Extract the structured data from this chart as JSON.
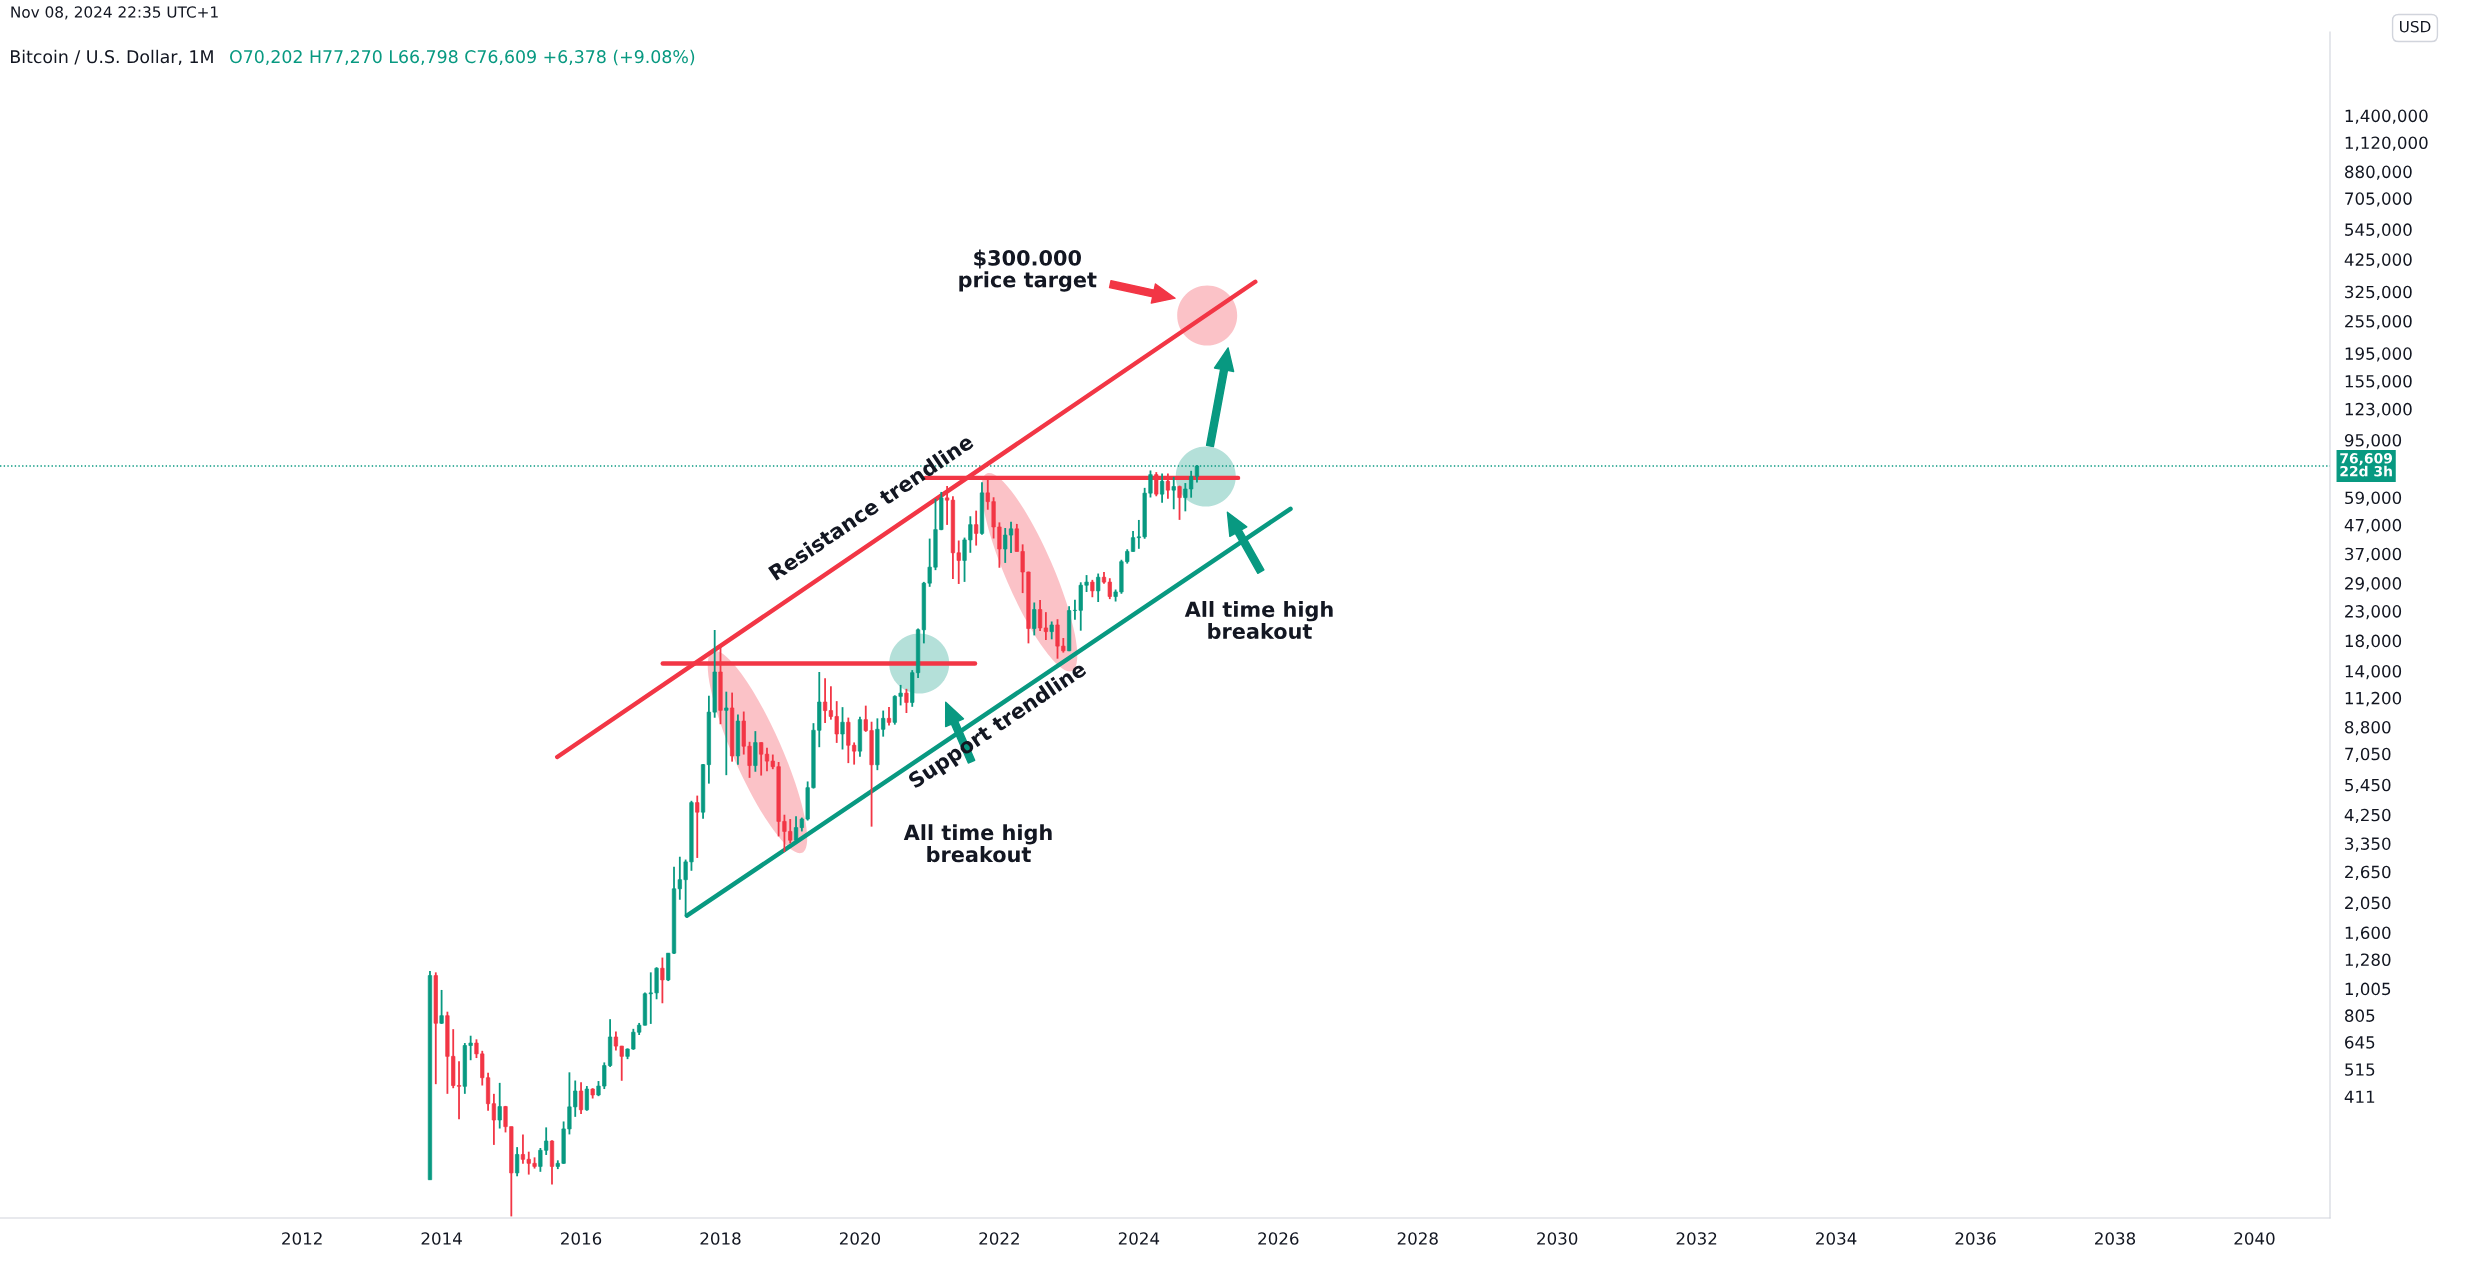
{
  "chart_data": {
    "type": "candlestick",
    "title": "Bitcoin / U.S. Dollar, 1M",
    "subtitle": "O70,202 H77,270 L66,798 C76,609 +6,378 (+9.08%)",
    "ylabel": "USD",
    "annotations": [
      "Nov 08, 2024 22:35 UTC+1",
      "Resistance trendline",
      "Support trendline",
      "All time high\nbreakout",
      "All time high\nbreakout",
      "$300.000\nprice target"
    ],
    "x": [
      "2013-11",
      "2013-12",
      "2014-01",
      "2014-02",
      "2014-03",
      "2014-04",
      "2014-05",
      "2014-06",
      "2014-07",
      "2014-08",
      "2014-09",
      "2014-10",
      "2014-11",
      "2014-12",
      "2015-01",
      "2015-02",
      "2015-03",
      "2015-04",
      "2015-05",
      "2015-06",
      "2015-07",
      "2015-08",
      "2015-09",
      "2015-10",
      "2015-11",
      "2015-12",
      "2016-01",
      "2016-02",
      "2016-03",
      "2016-04",
      "2016-05",
      "2016-06",
      "2016-07",
      "2016-08",
      "2016-09",
      "2016-10",
      "2016-11",
      "2016-12",
      "2017-01",
      "2017-02",
      "2017-03",
      "2017-04",
      "2017-05",
      "2017-06",
      "2017-07",
      "2017-08",
      "2017-09",
      "2017-10",
      "2017-11",
      "2017-12",
      "2018-01",
      "2018-02",
      "2018-03",
      "2018-04",
      "2018-05",
      "2018-06",
      "2018-07",
      "2018-08",
      "2018-09",
      "2018-10",
      "2018-11",
      "2018-12",
      "2019-01",
      "2019-02",
      "2019-03",
      "2019-04",
      "2019-05",
      "2019-06",
      "2019-07",
      "2019-08",
      "2019-09",
      "2019-10",
      "2019-11",
      "2019-12",
      "2020-01",
      "2020-02",
      "2020-03",
      "2020-04",
      "2020-05",
      "2020-06",
      "2020-07",
      "2020-08",
      "2020-09",
      "2020-10",
      "2020-11",
      "2020-12",
      "2021-01",
      "2021-02",
      "2021-03",
      "2021-04",
      "2021-05",
      "2021-06",
      "2021-07",
      "2021-08",
      "2021-09",
      "2021-10",
      "2021-11",
      "2021-12",
      "2022-01",
      "2022-02",
      "2022-03",
      "2022-04",
      "2022-05",
      "2022-06",
      "2022-07",
      "2022-08",
      "2022-09",
      "2022-10",
      "2022-11",
      "2022-12",
      "2023-01",
      "2023-02",
      "2023-03",
      "2023-04",
      "2023-05",
      "2023-06",
      "2023-07",
      "2023-08",
      "2023-09",
      "2023-10",
      "2023-11",
      "2023-12",
      "2024-01",
      "2024-02",
      "2024-03",
      "2024-04",
      "2024-05",
      "2024-06",
      "2024-07",
      "2024-08",
      "2024-09",
      "2024-10",
      "2024-11"
    ],
    "ohlc": [
      [
        206,
        1163,
        206,
        1120
      ],
      [
        1120,
        1150,
        455,
        754
      ],
      [
        754,
        994,
        750,
        803
      ],
      [
        803,
        830,
        420,
        573
      ],
      [
        573,
        718,
        440,
        450
      ],
      [
        450,
        550,
        340,
        447
      ],
      [
        447,
        640,
        420,
        627
      ],
      [
        627,
        680,
        555,
        640
      ],
      [
        640,
        660,
        565,
        585
      ],
      [
        585,
        600,
        450,
        480
      ],
      [
        480,
        500,
        365,
        387
      ],
      [
        387,
        420,
        275,
        338
      ],
      [
        338,
        460,
        315,
        378
      ],
      [
        378,
        380,
        305,
        320
      ],
      [
        320,
        320,
        152,
        218
      ],
      [
        218,
        270,
        212,
        254
      ],
      [
        254,
        300,
        235,
        244
      ],
      [
        244,
        260,
        215,
        236
      ],
      [
        236,
        248,
        226,
        230
      ],
      [
        230,
        268,
        220,
        263
      ],
      [
        263,
        318,
        253,
        284
      ],
      [
        284,
        286,
        198,
        230
      ],
      [
        230,
        242,
        225,
        236
      ],
      [
        236,
        334,
        235,
        314
      ],
      [
        314,
        502,
        300,
        377
      ],
      [
        377,
        469,
        347,
        430
      ],
      [
        430,
        462,
        355,
        368
      ],
      [
        368,
        448,
        365,
        437
      ],
      [
        437,
        440,
        404,
        416
      ],
      [
        416,
        467,
        412,
        448
      ],
      [
        448,
        545,
        437,
        531
      ],
      [
        531,
        780,
        525,
        673
      ],
      [
        673,
        704,
        602,
        624
      ],
      [
        624,
        625,
        468,
        573
      ],
      [
        573,
        612,
        560,
        609
      ],
      [
        609,
        720,
        605,
        700
      ],
      [
        700,
        756,
        684,
        742
      ],
      [
        742,
        973,
        740,
        963
      ],
      [
        963,
        1150,
        750,
        970
      ],
      [
        970,
        1200,
        920,
        1190
      ],
      [
        1190,
        1300,
        890,
        1080
      ],
      [
        1080,
        1350,
        1070,
        1348
      ],
      [
        1348,
        2760,
        1340,
        2300
      ],
      [
        2300,
        3000,
        2100,
        2480
      ],
      [
        2480,
        2930,
        1830,
        2875
      ],
      [
        2875,
        4770,
        2670,
        4700
      ],
      [
        4700,
        4980,
        2970,
        4340
      ],
      [
        4340,
        6470,
        4110,
        6440
      ],
      [
        6440,
        11400,
        5500,
        9950
      ],
      [
        9950,
        19666,
        9500,
        13880
      ],
      [
        13880,
        17180,
        9000,
        10100
      ],
      [
        10100,
        11790,
        5900,
        10300
      ],
      [
        10300,
        11700,
        6600,
        6920
      ],
      [
        6920,
        9750,
        6430,
        9240
      ],
      [
        9240,
        10000,
        7000,
        7500
      ],
      [
        7500,
        7780,
        5770,
        6390
      ],
      [
        6390,
        8500,
        6070,
        7730
      ],
      [
        7730,
        7750,
        5880,
        7020
      ],
      [
        7020,
        7400,
        6100,
        6630
      ],
      [
        6630,
        7000,
        6200,
        6330
      ],
      [
        6330,
        6580,
        3550,
        4020
      ],
      [
        4020,
        4250,
        3120,
        3700
      ],
      [
        3700,
        4100,
        3350,
        3440
      ],
      [
        3440,
        4200,
        3380,
        3820
      ],
      [
        3820,
        4150,
        3700,
        4100
      ],
      [
        4100,
        5600,
        4050,
        5320
      ],
      [
        5320,
        9080,
        5280,
        8560
      ],
      [
        8560,
        13880,
        7440,
        10820
      ],
      [
        10820,
        13180,
        9100,
        10080
      ],
      [
        10080,
        12330,
        9350,
        9600
      ],
      [
        9600,
        10900,
        7710,
        8300
      ],
      [
        8300,
        10370,
        7300,
        9150
      ],
      [
        9150,
        9510,
        6520,
        7560
      ],
      [
        7560,
        7740,
        6440,
        7200
      ],
      [
        7200,
        9580,
        6880,
        9350
      ],
      [
        9350,
        10500,
        8450,
        8540
      ],
      [
        8540,
        9190,
        3850,
        6430
      ],
      [
        6430,
        9450,
        6150,
        8630
      ],
      [
        8630,
        10080,
        8120,
        9450
      ],
      [
        9450,
        10380,
        8900,
        9140
      ],
      [
        9140,
        11440,
        8970,
        11340
      ],
      [
        11340,
        12470,
        10520,
        11650
      ],
      [
        11650,
        12070,
        9880,
        10780
      ],
      [
        10780,
        14100,
        10400,
        13800
      ],
      [
        13800,
        19900,
        13200,
        19700
      ],
      [
        19700,
        29300,
        17600,
        28990
      ],
      [
        28990,
        41950,
        28130,
        33100
      ],
      [
        33100,
        58350,
        32300,
        45200
      ],
      [
        45200,
        61780,
        45000,
        58800
      ],
      [
        58800,
        64900,
        47000,
        57700
      ],
      [
        57700,
        59600,
        30000,
        37300
      ],
      [
        37300,
        41300,
        28800,
        35000
      ],
      [
        35000,
        42300,
        29300,
        41500
      ],
      [
        41500,
        50500,
        37300,
        47100
      ],
      [
        47100,
        52900,
        39600,
        43800
      ],
      [
        43800,
        67000,
        43300,
        61300
      ],
      [
        61300,
        69000,
        53300,
        57000
      ],
      [
        57000,
        59100,
        42000,
        46200
      ],
      [
        46200,
        47990,
        32950,
        38500
      ],
      [
        38500,
        45800,
        34300,
        43200
      ],
      [
        43200,
        48200,
        37200,
        45500
      ],
      [
        45500,
        47400,
        37700,
        37700
      ],
      [
        37700,
        40000,
        26700,
        31800
      ],
      [
        31800,
        31900,
        17600,
        19900
      ],
      [
        19900,
        24700,
        18800,
        23300
      ],
      [
        23300,
        25200,
        19500,
        20000
      ],
      [
        20000,
        22800,
        18100,
        19400
      ],
      [
        19400,
        21100,
        18200,
        20500
      ],
      [
        20500,
        21500,
        15500,
        17200
      ],
      [
        17200,
        18400,
        16300,
        16550
      ],
      [
        16550,
        23950,
        16500,
        23100
      ],
      [
        23100,
        25250,
        21400,
        23150
      ],
      [
        23150,
        29200,
        19550,
        28500
      ],
      [
        28500,
        31000,
        26950,
        29250
      ],
      [
        29250,
        29800,
        25800,
        27200
      ],
      [
        27200,
        31400,
        24800,
        30450
      ],
      [
        30450,
        31800,
        28850,
        29250
      ],
      [
        29250,
        30200,
        25400,
        25950
      ],
      [
        25950,
        27500,
        24900,
        26960
      ],
      [
        26960,
        35200,
        26550,
        34650
      ],
      [
        34650,
        38400,
        34100,
        37720
      ],
      [
        37720,
        44700,
        37600,
        42280
      ],
      [
        42280,
        48970,
        38550,
        42580
      ],
      [
        42580,
        63900,
        41900,
        61150
      ],
      [
        61150,
        73800,
        59000,
        71300
      ],
      [
        71300,
        72800,
        59600,
        60650
      ],
      [
        60650,
        71950,
        56500,
        67500
      ],
      [
        67500,
        71950,
        58400,
        62700
      ],
      [
        62700,
        70000,
        53500,
        64600
      ],
      [
        64600,
        65100,
        49000,
        58950
      ],
      [
        58950,
        66500,
        52600,
        63300
      ],
      [
        63300,
        73600,
        58900,
        70202
      ],
      [
        70202,
        77270,
        66798,
        76609
      ]
    ],
    "colors": [
      "#089981",
      "#f23645",
      "#089981",
      "#f23645",
      "#f23645",
      "#f23645",
      "#089981",
      "#089981",
      "#f23645",
      "#f23645",
      "#f23645",
      "#f23645",
      "#089981",
      "#f23645",
      "#f23645",
      "#089981",
      "#f23645",
      "#f23645",
      "#f23645",
      "#089981",
      "#089981",
      "#f23645",
      "#089981",
      "#089981",
      "#089981",
      "#089981",
      "#f23645",
      "#089981",
      "#f23645",
      "#089981",
      "#089981",
      "#089981",
      "#f23645",
      "#f23645",
      "#089981",
      "#089981",
      "#089981",
      "#089981",
      "#089981",
      "#089981",
      "#f23645",
      "#089981",
      "#089981",
      "#089981",
      "#089981",
      "#089981",
      "#f23645",
      "#089981",
      "#089981",
      "#089981",
      "#f23645",
      "#089981",
      "#f23645",
      "#089981",
      "#f23645",
      "#f23645",
      "#089981",
      "#f23645",
      "#f23645",
      "#f23645",
      "#f23645",
      "#f23645",
      "#f23645",
      "#089981",
      "#089981",
      "#089981",
      "#089981",
      "#089981",
      "#f23645",
      "#f23645",
      "#f23645",
      "#089981",
      "#f23645",
      "#f23645",
      "#089981",
      "#f23645",
      "#f23645",
      "#089981",
      "#089981",
      "#f23645",
      "#089981",
      "#089981",
      "#f23645",
      "#089981",
      "#089981",
      "#089981",
      "#089981",
      "#089981",
      "#089981",
      "#f23645",
      "#f23645",
      "#f23645",
      "#089981",
      "#089981",
      "#f23645",
      "#089981",
      "#f23645",
      "#f23645",
      "#f23645",
      "#089981",
      "#089981",
      "#f23645",
      "#f23645",
      "#f23645",
      "#089981",
      "#f23645",
      "#f23645",
      "#089981",
      "#f23645",
      "#f23645",
      "#089981",
      "#089981",
      "#089981",
      "#089981",
      "#f23645",
      "#089981",
      "#f23645",
      "#f23645",
      "#089981",
      "#089981",
      "#089981",
      "#089981",
      "#089981",
      "#089981",
      "#089981",
      "#f23645",
      "#089981",
      "#f23645",
      "#089981",
      "#f23645",
      "#089981",
      "#089981",
      "#089981"
    ],
    "series": [
      {
        "type": "line",
        "color": "#f23645",
        "x": [
          "2015-08-29",
          "2025-09-02"
        ],
        "values": [
          6860,
          353000
        ]
      },
      {
        "type": "line",
        "color": "#089981",
        "x": [
          "2017-07-08",
          "2026-03-04"
        ],
        "values": [
          1840,
          53700
        ]
      },
      {
        "type": "line",
        "color": "#f23645",
        "x": [
          "2017-03-03",
          "2021-08-26"
        ],
        "values": [
          14900,
          14900
        ]
      },
      {
        "type": "line",
        "color": "#f23645",
        "x": [
          "2020-12-10",
          "2025-06-03"
        ],
        "values": [
          69400,
          69400
        ]
      }
    ],
    "ref_lines": [
      {
        "axis": "y",
        "value": 76609,
        "label": "76,609\n22d 3h",
        "color": "#089981",
        "line_style": "dotted"
      }
    ],
    "log": true,
    "xlim": [
      "2007-09",
      "2041-02"
    ],
    "xticks": [
      "2012",
      "2014",
      "2016",
      "2018",
      "2020",
      "2022",
      "2024",
      "2026",
      "2028",
      "2030",
      "2032",
      "2034",
      "2036",
      "2038",
      "2040"
    ],
    "ylim": [
      150,
      2800000
    ],
    "yticks": [
      411,
      515,
      645,
      805,
      {
        "value": 1005,
        "label": "1,005"
      },
      {
        "value": 1280,
        "label": "1,280"
      },
      {
        "value": 1600,
        "label": "1,600"
      },
      {
        "value": 2050,
        "label": "2,050"
      },
      {
        "value": 2650,
        "label": "2,650"
      },
      {
        "value": 3350,
        "label": "3,350"
      },
      {
        "value": 4250,
        "label": "4,250"
      },
      {
        "value": 5450,
        "label": "5,450"
      },
      {
        "value": 7050,
        "label": "7,050"
      },
      {
        "value": 8800,
        "label": "8,800"
      },
      {
        "value": 11200,
        "label": "11,200"
      },
      {
        "value": 14000,
        "label": "14,000"
      },
      {
        "value": 18000,
        "label": "18,000"
      },
      {
        "value": 23000,
        "label": "23,000"
      },
      {
        "value": 29000,
        "label": "29,000"
      },
      {
        "value": 37000,
        "label": "37,000"
      },
      {
        "value": 47000,
        "label": "47,000"
      },
      {
        "value": 59000,
        "label": "59,000"
      },
      {
        "value": 95000,
        "label": "95,000"
      },
      {
        "value": 123000,
        "label": "123,000"
      },
      {
        "value": 155000,
        "label": "155,000"
      },
      {
        "value": 195000,
        "label": "195,000"
      },
      {
        "value": 255000,
        "label": "255,000"
      },
      {
        "value": 325000,
        "label": "325,000"
      },
      {
        "value": 425000,
        "label": "425,000"
      },
      {
        "value": 545000,
        "label": "545,000"
      },
      {
        "value": 705000,
        "label": "705,000"
      },
      {
        "value": 880000,
        "label": "880,000"
      },
      {
        "value": 1120000,
        "label": "1,120,000"
      },
      {
        "value": 1400000,
        "label": "1,400,000"
      }
    ],
    "grid": false
  }
}
